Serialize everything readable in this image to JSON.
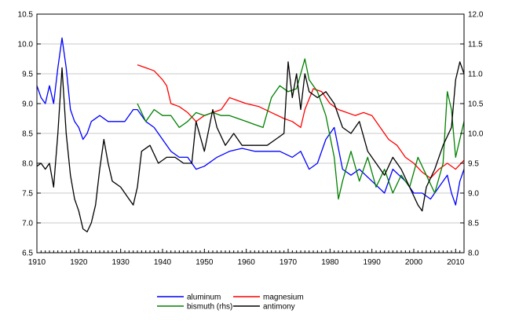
{
  "chart_data": {
    "type": "line",
    "title": "",
    "xlabel": "",
    "ylabel_left": "",
    "ylabel_right": "",
    "xlim": [
      1910,
      2012
    ],
    "ylim_left": [
      6.5,
      10.5
    ],
    "ylim_right": [
      8.0,
      12.0
    ],
    "x_ticks": [
      "1910",
      "1920",
      "1930",
      "1940",
      "1950",
      "1960",
      "1970",
      "1980",
      "1990",
      "2000",
      "2010"
    ],
    "y_ticks_left": [
      "6.5",
      "7.0",
      "7.5",
      "8.0",
      "8.5",
      "9.0",
      "9.5",
      "10.0",
      "10.5"
    ],
    "y_ticks_right": [
      "8.0",
      "8.5",
      "9.0",
      "9.5",
      "10.0",
      "10.5",
      "11.0",
      "11.5",
      "12.0"
    ],
    "grid": "horizontal",
    "legend_position": "bottom",
    "series": [
      {
        "name": "aluminum",
        "color": "#0000ff",
        "axis": "left",
        "x": [
          1910,
          1911,
          1912,
          1913,
          1914,
          1915,
          1916,
          1917,
          1918,
          1919,
          1920,
          1921,
          1922,
          1923,
          1925,
          1927,
          1929,
          1931,
          1933,
          1934,
          1936,
          1938,
          1940,
          1942,
          1944,
          1946,
          1948,
          1950,
          1953,
          1956,
          1959,
          1962,
          1965,
          1968,
          1971,
          1973,
          1975,
          1977,
          1979,
          1981,
          1983,
          1985,
          1987,
          1990,
          1993,
          1995,
          1998,
          2000,
          2002,
          2004,
          2006,
          2008,
          2009,
          2010,
          2011,
          2012
        ],
        "y": [
          9.3,
          9.1,
          9.0,
          9.3,
          9.0,
          9.6,
          10.1,
          9.6,
          8.9,
          8.7,
          8.6,
          8.4,
          8.5,
          8.7,
          8.8,
          8.7,
          8.7,
          8.7,
          8.9,
          8.9,
          8.7,
          8.6,
          8.4,
          8.2,
          8.1,
          8.1,
          7.9,
          7.95,
          8.1,
          8.2,
          8.25,
          8.2,
          8.2,
          8.2,
          8.1,
          8.2,
          7.9,
          8.0,
          8.4,
          8.6,
          7.9,
          7.8,
          7.9,
          7.7,
          7.5,
          7.9,
          7.7,
          7.5,
          7.5,
          7.4,
          7.6,
          7.8,
          7.5,
          7.3,
          7.7,
          7.9
        ]
      },
      {
        "name": "magnesium",
        "color": "#ff0000",
        "axis": "left",
        "x": [
          1934,
          1936,
          1938,
          1940,
          1941,
          1942,
          1944,
          1946,
          1948,
          1950,
          1952,
          1954,
          1956,
          1958,
          1960,
          1963,
          1966,
          1969,
          1971,
          1973,
          1974,
          1976,
          1978,
          1980,
          1982,
          1984,
          1986,
          1988,
          1990,
          1992,
          1994,
          1996,
          1998,
          2000,
          2002,
          2004,
          2006,
          2008,
          2010,
          2012
        ],
        "y": [
          9.65,
          9.6,
          9.55,
          9.4,
          9.3,
          9.0,
          8.95,
          8.85,
          8.7,
          8.8,
          8.85,
          8.9,
          9.1,
          9.05,
          9.0,
          8.95,
          8.85,
          8.75,
          8.7,
          8.6,
          8.9,
          9.25,
          9.2,
          9.0,
          8.9,
          8.85,
          8.8,
          8.85,
          8.8,
          8.6,
          8.4,
          8.3,
          8.1,
          8.0,
          7.85,
          7.75,
          7.9,
          8.0,
          7.9,
          8.05
        ]
      },
      {
        "name": "bismuth (rhs)",
        "color": "#008000",
        "axis": "right",
        "x": [
          1934,
          1936,
          1938,
          1940,
          1942,
          1944,
          1946,
          1948,
          1950,
          1952,
          1954,
          1956,
          1958,
          1960,
          1962,
          1964,
          1966,
          1968,
          1970,
          1972,
          1974,
          1975,
          1977,
          1979,
          1981,
          1982,
          1983,
          1985,
          1987,
          1989,
          1991,
          1993,
          1995,
          1997,
          1999,
          2001,
          2003,
          2005,
          2007,
          2008,
          2009,
          2010,
          2012
        ],
        "y": [
          10.5,
          10.2,
          10.4,
          10.3,
          10.3,
          10.1,
          10.2,
          10.35,
          10.3,
          10.35,
          10.3,
          10.3,
          10.25,
          10.2,
          10.15,
          10.1,
          10.6,
          10.8,
          10.7,
          10.75,
          11.25,
          10.9,
          10.7,
          10.3,
          9.6,
          8.9,
          9.2,
          9.7,
          9.2,
          9.6,
          9.1,
          9.4,
          9.0,
          9.3,
          9.1,
          9.6,
          9.3,
          9.0,
          9.5,
          10.7,
          10.4,
          9.6,
          10.2
        ]
      },
      {
        "name": "antimony",
        "color": "#000000",
        "axis": "left",
        "x": [
          1910,
          1911,
          1912,
          1913,
          1914,
          1915,
          1916,
          1917,
          1918,
          1919,
          1920,
          1921,
          1922,
          1923,
          1924,
          1925,
          1926,
          1927,
          1928,
          1930,
          1932,
          1933,
          1934,
          1935,
          1937,
          1939,
          1941,
          1943,
          1945,
          1947,
          1948,
          1950,
          1952,
          1953,
          1955,
          1957,
          1959,
          1961,
          1963,
          1965,
          1967,
          1969,
          1970,
          1971,
          1972,
          1973,
          1974,
          1975,
          1977,
          1979,
          1981,
          1983,
          1985,
          1987,
          1989,
          1991,
          1993,
          1995,
          1997,
          1999,
          2001,
          2002,
          2003,
          2005,
          2007,
          2009,
          2010,
          2011,
          2012
        ],
        "y": [
          7.95,
          8.0,
          7.9,
          8.0,
          7.6,
          8.5,
          9.6,
          8.5,
          7.8,
          7.4,
          7.2,
          6.9,
          6.85,
          7.0,
          7.3,
          7.9,
          8.4,
          8.0,
          7.7,
          7.6,
          7.4,
          7.3,
          7.6,
          8.2,
          8.3,
          8.0,
          8.1,
          8.1,
          8.0,
          8.0,
          8.7,
          8.2,
          8.9,
          8.6,
          8.3,
          8.5,
          8.3,
          8.3,
          8.3,
          8.3,
          8.4,
          8.5,
          9.7,
          9.1,
          9.5,
          8.9,
          9.5,
          9.2,
          9.1,
          9.2,
          9.0,
          8.6,
          8.5,
          8.7,
          8.2,
          8.0,
          7.8,
          8.1,
          7.9,
          7.6,
          7.3,
          7.2,
          7.6,
          7.9,
          8.3,
          8.6,
          9.4,
          9.7,
          9.5
        ]
      }
    ]
  }
}
